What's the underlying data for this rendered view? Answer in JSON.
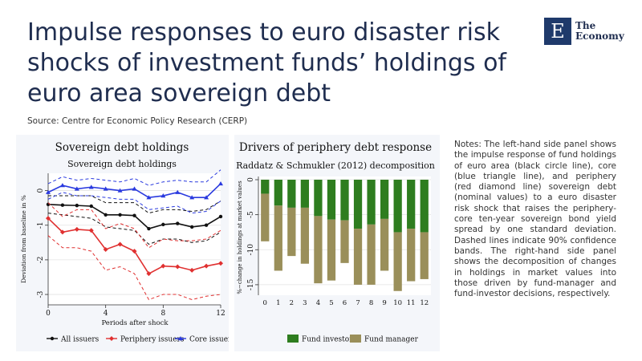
{
  "header": {
    "title": "Impulse responses to euro disaster risk shocks of investment funds’ holdings of euro area sovereign debt",
    "source": "Source: Centre for Economic Policy Research (CERP)"
  },
  "logo": {
    "mark": "E",
    "line1": "The",
    "line2": "Economy"
  },
  "notes": "Notes: The left-hand side panel shows the impulse response of fund holdings of euro area (black circle line), core (blue triangle line), and periphery (red diamond line) sovereign debt (nominal values) to a euro disaster risk shock that raises the periphery-core ten-year sovereign bond yield spread by one standard deviation. Dashed lines indicate 90% confidence bands. The right-hand side panel shows the decomposition of changes in holdings in market values into those driven by fund-manager and fund-investor decisions, respectively.",
  "colors": {
    "all": "#111111",
    "periphery": "#e03030",
    "core": "#2a3adf",
    "fund_investor": "#2e7d1f",
    "fund_manager": "#9a8f5a"
  },
  "chart_data": [
    {
      "type": "line",
      "title": "Sovereign debt holdings",
      "subtitle": "Sovereign debt holdings",
      "xlabel": "Periods after shock",
      "ylabel": "Deviation from baseline in %",
      "xlim": [
        0,
        12
      ],
      "ylim": [
        -3.3,
        0.5
      ],
      "xticks": [
        0,
        4,
        8,
        12
      ],
      "yticks": [
        0,
        -1,
        -2,
        -3
      ],
      "legend_position": "bottom",
      "x": [
        0,
        1,
        2,
        3,
        4,
        5,
        6,
        7,
        8,
        9,
        10,
        11,
        12
      ],
      "series": [
        {
          "name": "All issuers",
          "key": "all",
          "marker": "circle",
          "values": [
            -0.4,
            -0.42,
            -0.43,
            -0.45,
            -0.7,
            -0.7,
            -0.72,
            -1.1,
            -0.98,
            -0.95,
            -1.05,
            -1.0,
            -0.75
          ],
          "lower": [
            -0.65,
            -0.7,
            -0.75,
            -0.8,
            -1.05,
            -1.1,
            -1.15,
            -1.55,
            -1.4,
            -1.4,
            -1.5,
            -1.45,
            -1.2
          ],
          "upper": [
            -0.15,
            -0.15,
            -0.15,
            -0.15,
            -0.35,
            -0.35,
            -0.35,
            -0.65,
            -0.55,
            -0.55,
            -0.6,
            -0.55,
            -0.3
          ]
        },
        {
          "name": "Periphery issuers",
          "key": "periphery",
          "marker": "diamond",
          "values": [
            -0.8,
            -1.2,
            -1.12,
            -1.15,
            -1.7,
            -1.55,
            -1.75,
            -2.4,
            -2.18,
            -2.2,
            -2.3,
            -2.18,
            -2.1
          ],
          "lower": [
            -1.3,
            -1.65,
            -1.65,
            -1.75,
            -2.3,
            -2.2,
            -2.4,
            -3.15,
            -3.0,
            -3.0,
            -3.15,
            -3.05,
            -3.0
          ],
          "upper": [
            -0.35,
            -0.75,
            -0.55,
            -0.55,
            -1.1,
            -0.95,
            -1.1,
            -1.65,
            -1.4,
            -1.45,
            -1.45,
            -1.4,
            -1.15
          ]
        },
        {
          "name": "Core issuers",
          "key": "core",
          "marker": "triangle",
          "values": [
            -0.05,
            0.15,
            0.05,
            0.1,
            0.05,
            0.0,
            0.05,
            -0.2,
            -0.15,
            -0.05,
            -0.2,
            -0.2,
            0.2
          ],
          "lower": [
            -0.25,
            -0.05,
            -0.15,
            -0.15,
            -0.2,
            -0.25,
            -0.25,
            -0.55,
            -0.5,
            -0.45,
            -0.65,
            -0.6,
            -0.3
          ],
          "upper": [
            0.2,
            0.4,
            0.3,
            0.35,
            0.3,
            0.25,
            0.35,
            0.15,
            0.25,
            0.3,
            0.25,
            0.25,
            0.6
          ]
        }
      ]
    },
    {
      "type": "bar",
      "title": "Drivers of periphery debt response",
      "subtitle": "Raddatz & Schmukler (2012) decomposition",
      "xlabel": "",
      "ylabel": "%−change in holdings at market values",
      "ylim": [
        -16.5,
        0
      ],
      "yticks": [
        0,
        -5,
        -10,
        -15
      ],
      "categories": [
        "0",
        "1",
        "2",
        "3",
        "4",
        "5",
        "6",
        "7",
        "8",
        "9",
        "10",
        "11",
        "12"
      ],
      "legend_position": "bottom",
      "series": [
        {
          "name": "Fund investor",
          "key": "fund_investor",
          "values": [
            -2.0,
            -3.7,
            -4.0,
            -4.0,
            -5.2,
            -5.7,
            -5.8,
            -7.0,
            -6.4,
            -5.6,
            -7.5,
            -7.0,
            -7.5
          ]
        },
        {
          "name": "Fund manager",
          "key": "fund_manager",
          "values": [
            -6.8,
            -9.3,
            -6.9,
            -8.0,
            -9.6,
            -8.7,
            -6.1,
            -8.0,
            -8.6,
            -7.4,
            -8.4,
            -7.5,
            -6.7
          ]
        }
      ]
    }
  ]
}
